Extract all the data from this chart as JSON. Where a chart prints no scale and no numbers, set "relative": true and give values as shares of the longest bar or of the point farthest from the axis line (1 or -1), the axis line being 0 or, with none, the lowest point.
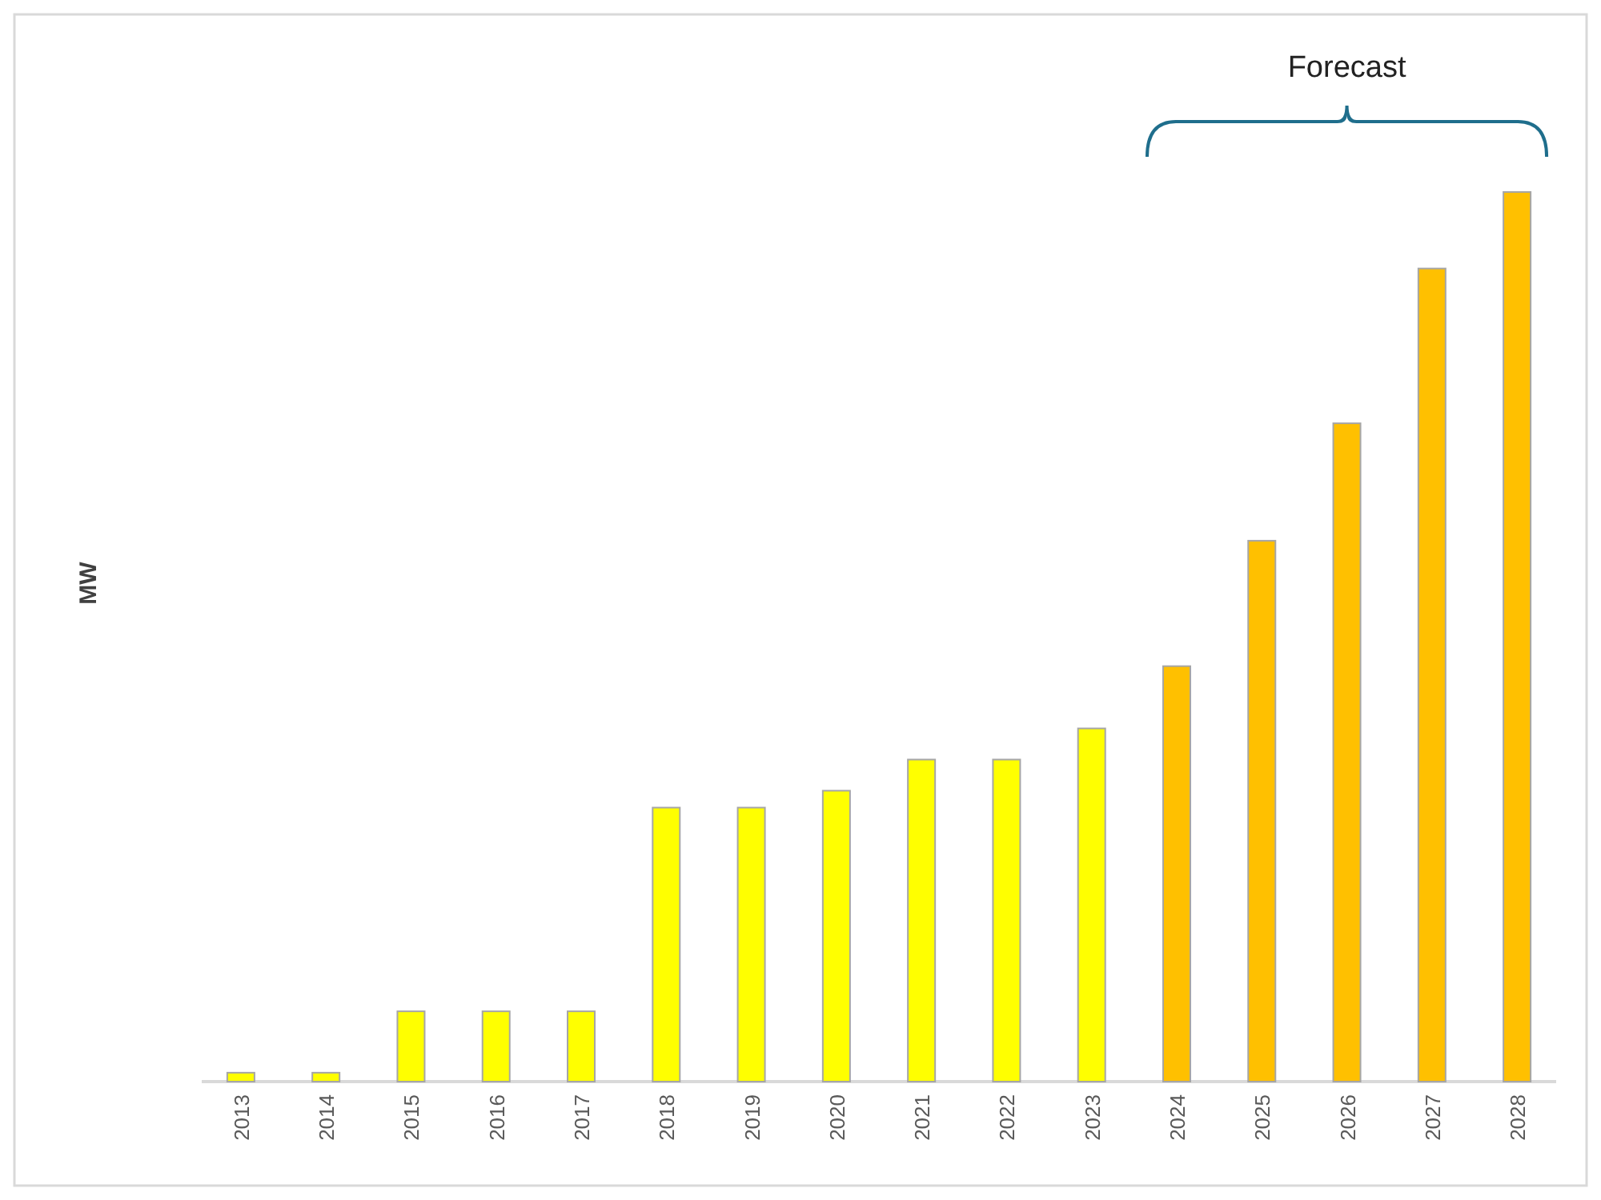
{
  "chart_data": {
    "type": "bar",
    "relative": true,
    "ylabel": "MW",
    "annotations": [
      "Forecast"
    ],
    "categories": [
      "2013",
      "2014",
      "2015",
      "2016",
      "2017",
      "2018",
      "2019",
      "2020",
      "2021",
      "2022",
      "2023",
      "2024",
      "2025",
      "2026",
      "2027",
      "2028"
    ],
    "values": [
      0.01,
      0.01,
      0.079,
      0.079,
      0.079,
      0.308,
      0.308,
      0.327,
      0.362,
      0.362,
      0.397,
      0.467,
      0.608,
      0.74,
      0.914,
      1
    ],
    "colors": [
      "#ffff00",
      "#ffff00",
      "#ffff00",
      "#ffff00",
      "#ffff00",
      "#ffff00",
      "#ffff00",
      "#ffff00",
      "#ffff00",
      "#ffff00",
      "#ffff00",
      "#ffc000",
      "#ffc000",
      "#ffc000",
      "#ffc000",
      "#ffc000"
    ]
  }
}
